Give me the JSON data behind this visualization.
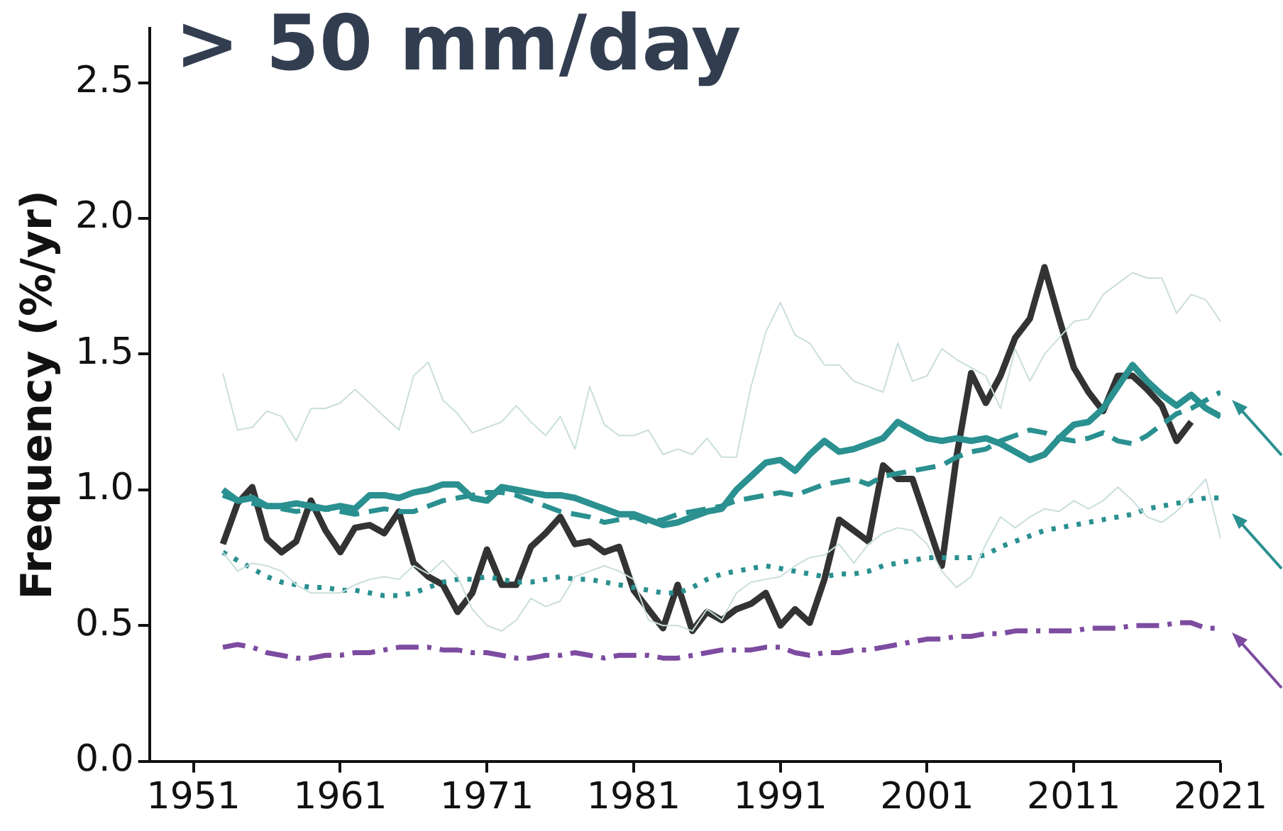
{
  "chart_data": {
    "type": "line",
    "title": "> 50 mm/day",
    "ylabel": "Frequency (%/yr)",
    "x": [
      1953,
      1954,
      1955,
      1956,
      1957,
      1958,
      1959,
      1960,
      1961,
      1962,
      1963,
      1964,
      1965,
      1966,
      1967,
      1968,
      1969,
      1970,
      1971,
      1972,
      1973,
      1974,
      1975,
      1976,
      1977,
      1978,
      1979,
      1980,
      1981,
      1982,
      1983,
      1984,
      1985,
      1986,
      1987,
      1988,
      1989,
      1990,
      1991,
      1992,
      1993,
      1994,
      1995,
      1996,
      1997,
      1998,
      1999,
      2000,
      2001,
      2002,
      2003,
      2004,
      2005,
      2006,
      2007,
      2008,
      2009,
      2010,
      2011,
      2012,
      2013,
      2014,
      2015,
      2016,
      2017,
      2018,
      2019,
      2020,
      2021
    ],
    "xlim": [
      1948,
      2021
    ],
    "xticks": [
      1951,
      1961,
      1971,
      1981,
      1991,
      2001,
      2011,
      2021
    ],
    "ylim": [
      0,
      2.7
    ],
    "yticks": [
      {
        "value": 0,
        "label": "0.0"
      },
      {
        "value": 0.5,
        "label": "0.5"
      },
      {
        "value": 1,
        "label": "1.0"
      },
      {
        "value": 1.5,
        "label": "1.5"
      },
      {
        "value": 2,
        "label": "2.0"
      },
      {
        "value": 2.5,
        "label": "2.5"
      }
    ],
    "grid": false,
    "legend": false,
    "marker": "none",
    "series": [
      {
        "color": "#c9dedd",
        "values": [
          0.77,
          0.7,
          0.73,
          0.72,
          0.7,
          0.65,
          0.62,
          0.62,
          0.62,
          0.65,
          0.67,
          0.68,
          0.67,
          0.72,
          0.69,
          0.74,
          0.68,
          0.56,
          0.5,
          0.48,
          0.52,
          0.6,
          0.57,
          0.59,
          0.68,
          0.7,
          0.72,
          0.7,
          0.67,
          0.52,
          0.5,
          0.5,
          0.48,
          0.56,
          0.52,
          0.62,
          0.66,
          0.67,
          0.68,
          0.72,
          0.75,
          0.76,
          0.8,
          0.73,
          0.8,
          0.84,
          0.86,
          0.85,
          0.8,
          0.7,
          0.64,
          0.68,
          0.8,
          0.9,
          0.86,
          0.9,
          0.93,
          0.92,
          0.96,
          0.93,
          0.96,
          1.01,
          0.96,
          0.9,
          0.88,
          0.92,
          0.98,
          1.04,
          0.82
        ]
      },
      {
        "color": "#c9dedd",
        "values": [
          1.43,
          1.22,
          1.23,
          1.29,
          1.27,
          1.18,
          1.3,
          1.3,
          1.32,
          1.37,
          1.32,
          1.27,
          1.22,
          1.42,
          1.47,
          1.33,
          1.28,
          1.21,
          1.23,
          1.25,
          1.31,
          1.25,
          1.2,
          1.27,
          1.15,
          1.38,
          1.24,
          1.2,
          1.2,
          1.22,
          1.13,
          1.15,
          1.13,
          1.19,
          1.12,
          1.12,
          1.38,
          1.58,
          1.69,
          1.57,
          1.54,
          1.46,
          1.46,
          1.4,
          1.38,
          1.36,
          1.54,
          1.4,
          1.42,
          1.52,
          1.48,
          1.45,
          1.42,
          1.3,
          1.52,
          1.4,
          1.5,
          1.56,
          1.62,
          1.63,
          1.72,
          1.76,
          1.8,
          1.78,
          1.78,
          1.65,
          1.72,
          1.7,
          1.62
        ]
      },
      {
        "color": "#2a9090",
        "line_style": "solid",
        "values": [
          1.0,
          0.96,
          0.97,
          0.94,
          0.94,
          0.95,
          0.94,
          0.93,
          0.94,
          0.93,
          0.98,
          0.98,
          0.97,
          0.99,
          1.0,
          1.02,
          1.02,
          0.97,
          0.96,
          1.01,
          1.0,
          0.99,
          0.98,
          0.98,
          0.97,
          0.95,
          0.93,
          0.91,
          0.91,
          0.89,
          0.87,
          0.88,
          0.9,
          0.92,
          0.93,
          1.0,
          1.05,
          1.1,
          1.11,
          1.07,
          1.13,
          1.18,
          1.14,
          1.15,
          1.17,
          1.19,
          1.25,
          1.22,
          1.19,
          1.18,
          1.19,
          1.18,
          1.19,
          1.17,
          1.14,
          1.11,
          1.13,
          1.19,
          1.24,
          1.25,
          1.3,
          1.38,
          1.46,
          1.4,
          1.35,
          1.31,
          1.35,
          1.3,
          1.27
        ]
      },
      {
        "color": "#2a9090",
        "line_style": "dashed",
        "values": [
          0.98,
          0.96,
          0.95,
          0.94,
          0.93,
          0.92,
          0.93,
          0.93,
          0.92,
          0.91,
          0.92,
          0.93,
          0.92,
          0.92,
          0.94,
          0.96,
          0.97,
          0.98,
          0.99,
          0.99,
          0.98,
          0.96,
          0.94,
          0.92,
          0.91,
          0.9,
          0.88,
          0.89,
          0.9,
          0.88,
          0.89,
          0.91,
          0.92,
          0.93,
          0.94,
          0.96,
          0.97,
          0.98,
          0.99,
          0.98,
          1.0,
          1.02,
          1.03,
          1.04,
          1.02,
          1.05,
          1.06,
          1.07,
          1.08,
          1.09,
          1.12,
          1.14,
          1.15,
          1.18,
          1.2,
          1.22,
          1.21,
          1.19,
          1.18,
          1.19,
          1.21,
          1.18,
          1.17,
          1.2,
          1.24,
          1.28,
          1.3,
          1.33,
          1.36
        ]
      },
      {
        "color": "#2a9090",
        "line_style": "dotted",
        "values": [
          0.77,
          0.74,
          0.71,
          0.68,
          0.66,
          0.65,
          0.64,
          0.64,
          0.63,
          0.63,
          0.62,
          0.61,
          0.61,
          0.62,
          0.64,
          0.66,
          0.67,
          0.67,
          0.68,
          0.67,
          0.66,
          0.66,
          0.67,
          0.68,
          0.67,
          0.67,
          0.66,
          0.65,
          0.64,
          0.63,
          0.62,
          0.62,
          0.64,
          0.67,
          0.69,
          0.7,
          0.71,
          0.72,
          0.71,
          0.7,
          0.69,
          0.68,
          0.69,
          0.69,
          0.7,
          0.72,
          0.73,
          0.74,
          0.75,
          0.75,
          0.75,
          0.75,
          0.76,
          0.79,
          0.81,
          0.83,
          0.85,
          0.86,
          0.87,
          0.88,
          0.89,
          0.9,
          0.91,
          0.93,
          0.94,
          0.95,
          0.96,
          0.97,
          0.97
        ]
      },
      {
        "color": "#7d4ba0",
        "line_style": "dashdot",
        "values": [
          0.42,
          0.43,
          0.42,
          0.4,
          0.39,
          0.38,
          0.38,
          0.39,
          0.39,
          0.4,
          0.4,
          0.41,
          0.42,
          0.42,
          0.42,
          0.41,
          0.41,
          0.4,
          0.4,
          0.39,
          0.38,
          0.38,
          0.39,
          0.39,
          0.4,
          0.39,
          0.38,
          0.39,
          0.39,
          0.39,
          0.38,
          0.38,
          0.39,
          0.4,
          0.41,
          0.41,
          0.41,
          0.42,
          0.42,
          0.4,
          0.39,
          0.4,
          0.4,
          0.41,
          0.41,
          0.42,
          0.43,
          0.44,
          0.45,
          0.45,
          0.46,
          0.46,
          0.47,
          0.47,
          0.48,
          0.48,
          0.48,
          0.48,
          0.48,
          0.49,
          0.49,
          0.49,
          0.5,
          0.5,
          0.5,
          0.51,
          0.51,
          0.49,
          0.49
        ]
      },
      {
        "color": "#333333",
        "line_style": "solid",
        "values": [
          0.8,
          0.95,
          1.01,
          0.82,
          0.77,
          0.81,
          0.96,
          0.85,
          0.77,
          0.86,
          0.87,
          0.84,
          0.92,
          0.73,
          0.68,
          0.65,
          0.55,
          0.62,
          0.78,
          0.65,
          0.65,
          0.79,
          0.84,
          0.9,
          0.8,
          0.81,
          0.77,
          0.79,
          0.63,
          0.56,
          0.49,
          0.65,
          0.48,
          0.55,
          0.52,
          0.56,
          0.58,
          0.62,
          0.5,
          0.56,
          0.51,
          0.67,
          0.89,
          0.85,
          0.81,
          1.09,
          1.04,
          1.04,
          0.88,
          0.72,
          1.12,
          1.43,
          1.32,
          1.42,
          1.56,
          1.63,
          1.82,
          1.63,
          1.45,
          1.36,
          1.29,
          1.42,
          1.42,
          1.37,
          1.31,
          1.18,
          1.25,
          null,
          null
        ]
      }
    ]
  }
}
